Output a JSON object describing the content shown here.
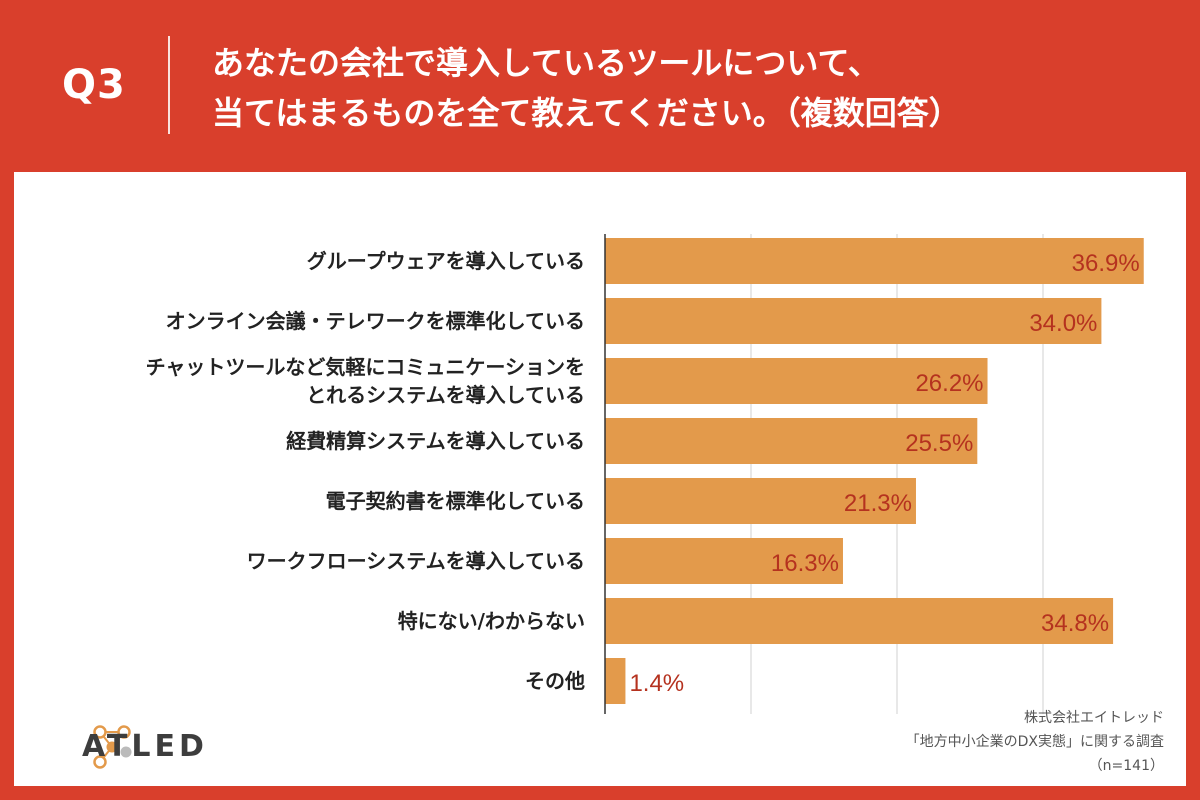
{
  "header": {
    "question_label": "Q3",
    "title_line1": "あなたの会社で導入しているツールについて、",
    "title_line2": "当てはまるものを全て教えてください。（複数回答）"
  },
  "brand": {
    "logo_text": "ATLED"
  },
  "source": {
    "line1": "株式会社エイトレッド",
    "line2": "「地方中小企業のDX実態」に関する調査",
    "line3": "（n=141）"
  },
  "colors": {
    "background": "#d93f2c",
    "bar": "#e39a4b",
    "value_label": "#b5321f",
    "grid": "#d0d0d0"
  },
  "chart_data": {
    "type": "bar",
    "orientation": "horizontal",
    "categories": [
      [
        "グループウェアを導入している"
      ],
      [
        "オンライン会議・テレワークを標準化している"
      ],
      [
        "チャットツールなど気軽にコミュニケーションを",
        "とれるシステムを導入している"
      ],
      [
        "経費精算システムを導入している"
      ],
      [
        "電子契約書を標準化している"
      ],
      [
        "ワークフローシステムを導入している"
      ],
      [
        "特にない/わからない"
      ],
      [
        "その他"
      ]
    ],
    "values": [
      36.9,
      34.0,
      26.2,
      25.5,
      21.3,
      16.3,
      34.8,
      1.4
    ],
    "value_labels": [
      "36.9%",
      "34.0%",
      "26.2%",
      "25.5%",
      "21.3%",
      "16.3%",
      "34.8%",
      "1.4%"
    ],
    "xlim": [
      0,
      40
    ],
    "grid": true,
    "gridlines": [
      10,
      20,
      30
    ]
  }
}
